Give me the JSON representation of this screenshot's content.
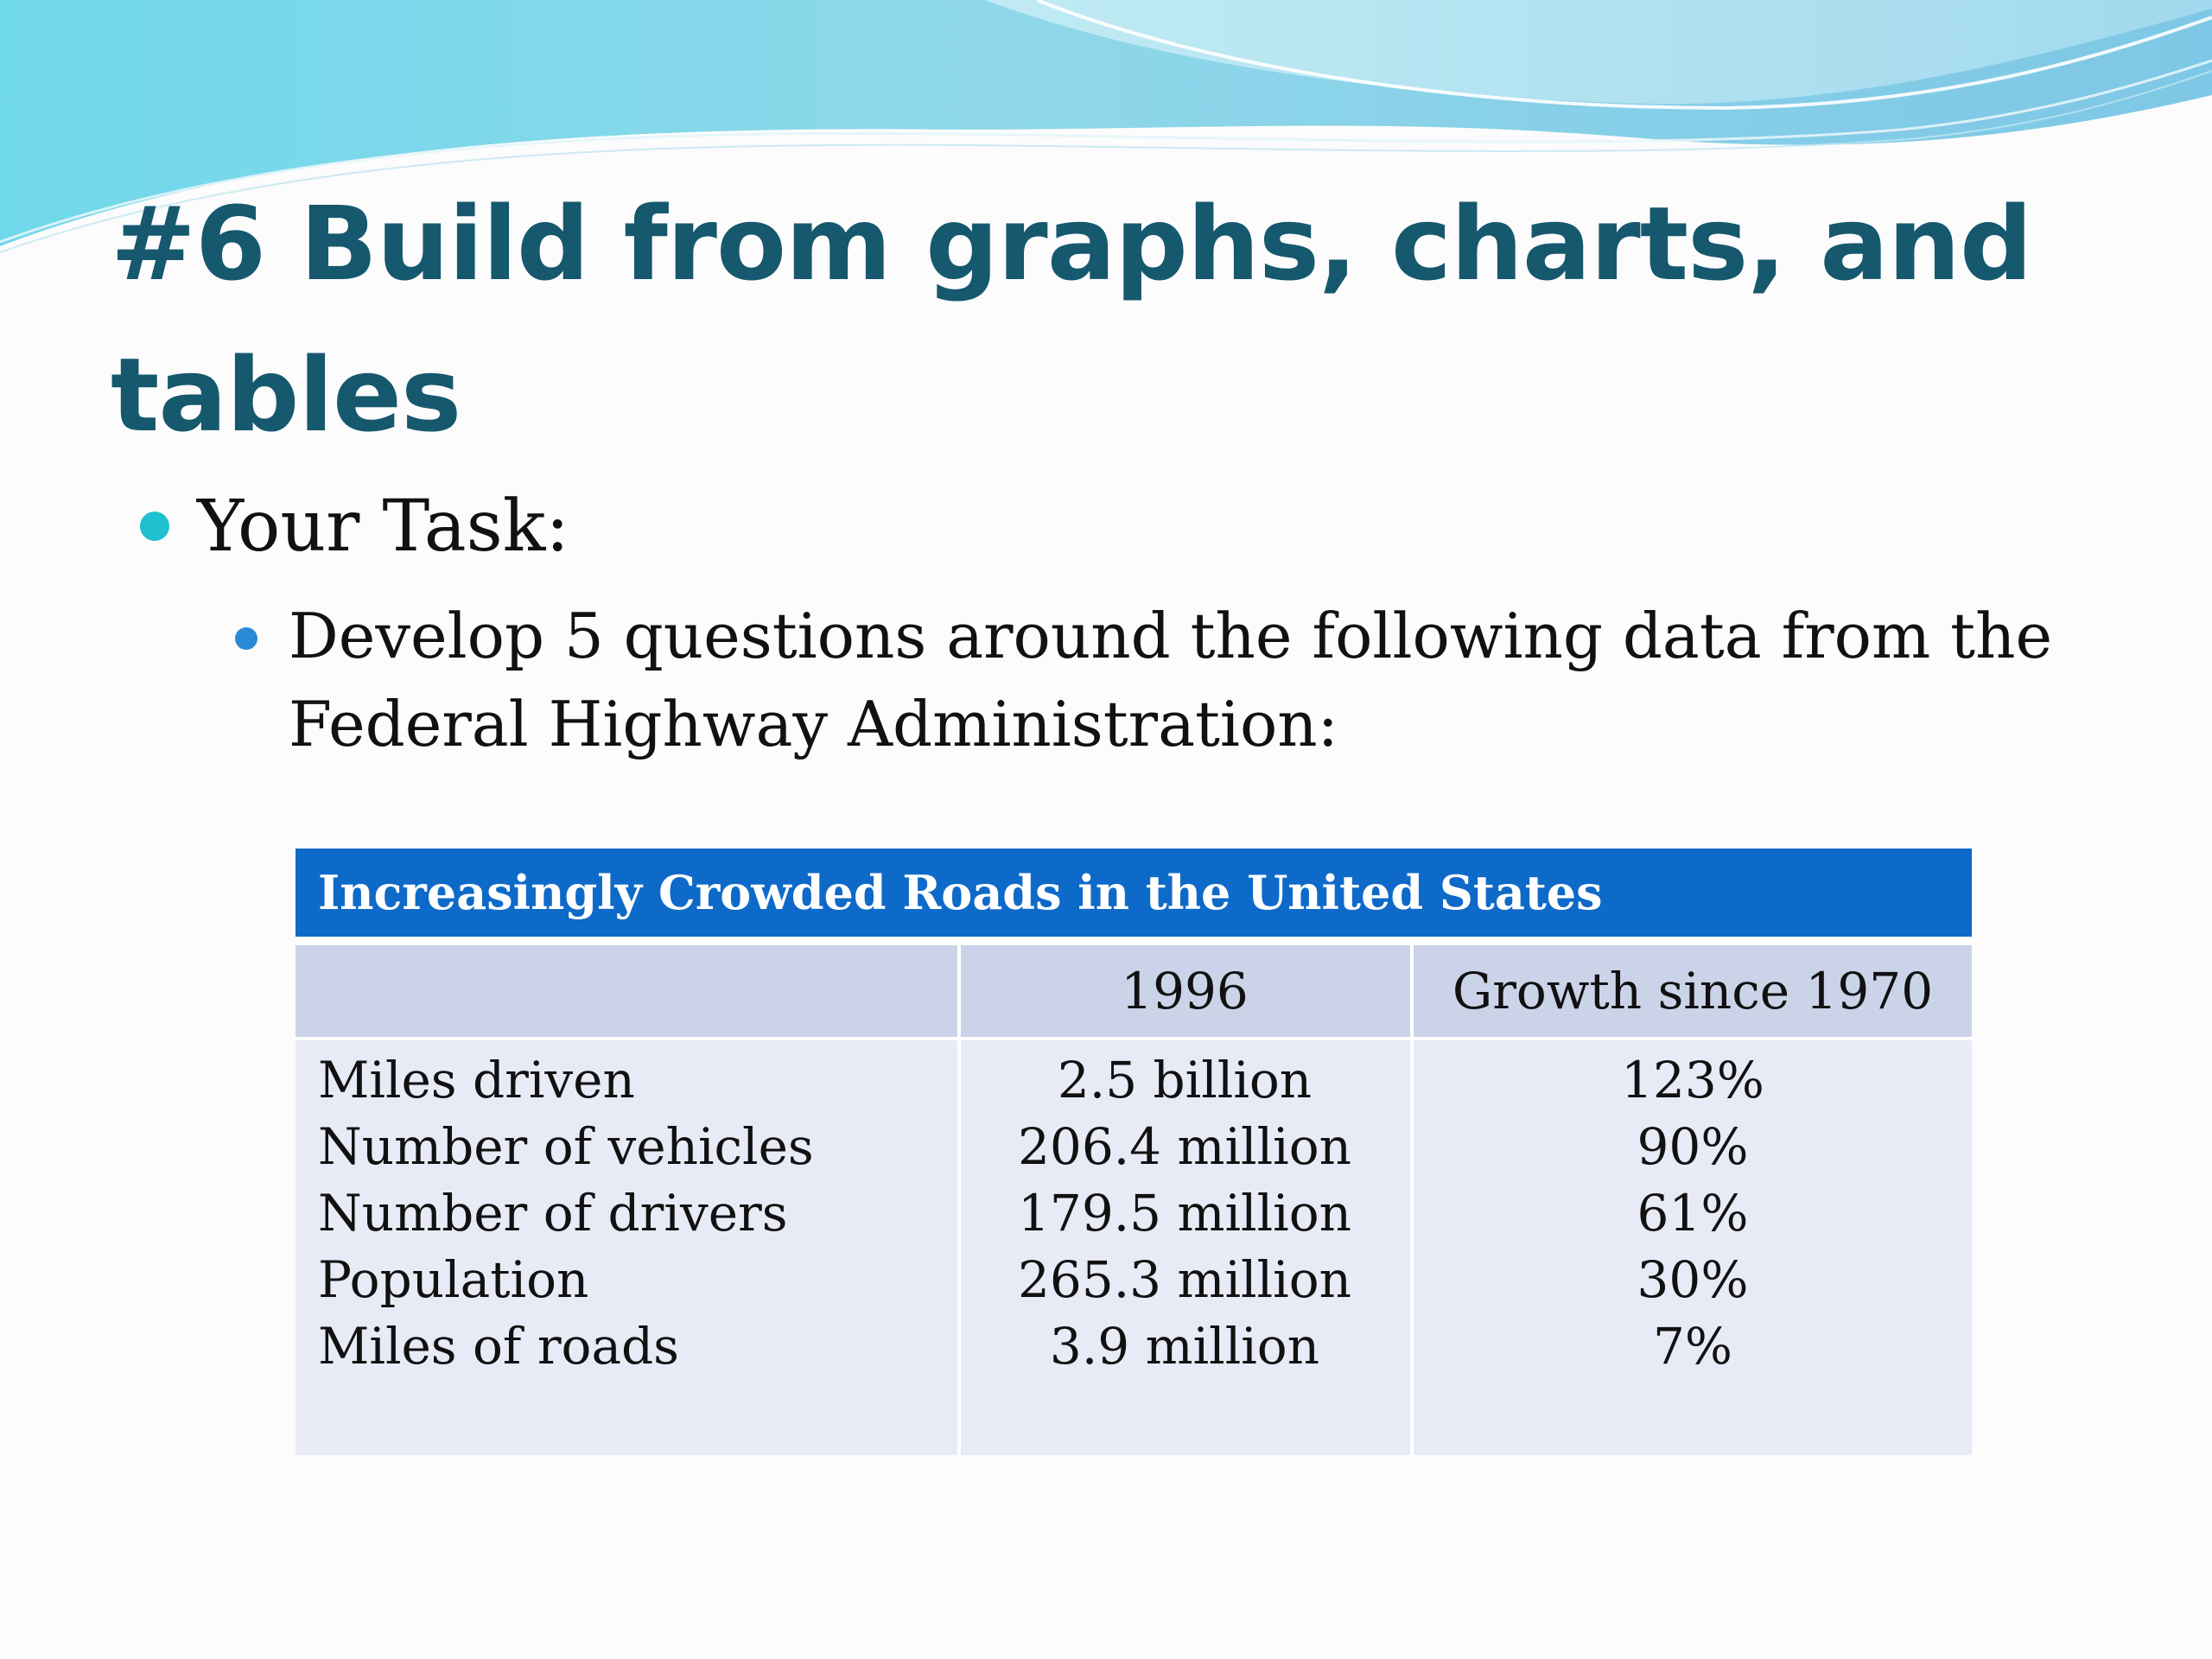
{
  "slide": {
    "title": "#6  Build from graphs, charts, and tables",
    "bullet_level1": "Your Task:",
    "bullet_level2": "Develop 5 questions around the following data from the Federal Highway Administration:"
  },
  "table": {
    "caption": "Increasingly Crowded Roads in the United States",
    "headers": [
      "",
      "1996",
      "Growth since 1970"
    ],
    "rows": [
      {
        "label": "Miles driven",
        "value_1996": "2.5 billion",
        "growth": "123%"
      },
      {
        "label": "Number of vehicles",
        "value_1996": "206.4 million",
        "growth": "90%"
      },
      {
        "label": "Number of drivers",
        "value_1996": "179.5 million",
        "growth": "61%"
      },
      {
        "label": "Population",
        "value_1996": "265.3 million",
        "growth": "30%"
      },
      {
        "label": "Miles of roads",
        "value_1996": "3.9 million",
        "growth": "7%"
      }
    ]
  },
  "colors": {
    "title": "#16586e",
    "caption_bg": "#0e6ac8",
    "header_bg": "#cbd3e9",
    "body_bg": "#e8ebf6",
    "bullet_l1": "#1fc0cf",
    "bullet_l2": "#2a8ad6"
  }
}
